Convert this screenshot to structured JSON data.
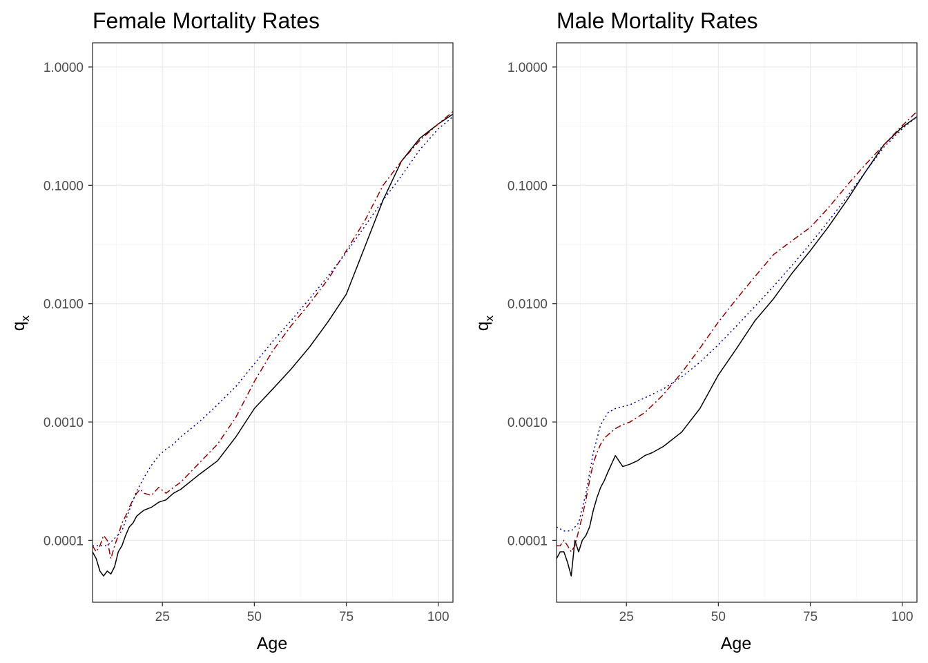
{
  "chart_data": [
    {
      "type": "line",
      "title": "Female Mortality Rates",
      "xlabel": "Age",
      "ylabel_main": "q",
      "ylabel_sub": "x",
      "xlim": [
        6,
        104
      ],
      "ylim": [
        3e-05,
        1.6
      ],
      "y_scale": "log10",
      "grid": true,
      "x_ticks": [
        25,
        50,
        75,
        100
      ],
      "x_tick_labels": [
        "25",
        "50",
        "75",
        "100"
      ],
      "y_ticks": [
        0.0001,
        0.001,
        0.01,
        0.1,
        1
      ],
      "y_tick_labels": [
        "0.0001",
        "0.0010",
        "0.0100",
        "0.1000",
        "1.0000"
      ],
      "series": [
        {
          "style": "solid",
          "color": "#000000",
          "x": [
            6,
            7,
            8,
            9,
            10,
            11,
            12,
            13,
            14,
            15,
            16,
            17,
            18,
            19,
            20,
            22,
            24,
            26,
            28,
            30,
            35,
            40,
            45,
            50,
            55,
            60,
            65,
            70,
            75,
            80,
            85,
            90,
            95,
            100,
            104
          ],
          "y": [
            8e-05,
            7e-05,
            5.5e-05,
            5e-05,
            5.5e-05,
            5.2e-05,
            6e-05,
            8e-05,
            9e-05,
            0.00011,
            0.00013,
            0.00014,
            0.00016,
            0.00017,
            0.00018,
            0.00019,
            0.00021,
            0.00022,
            0.00025,
            0.00027,
            0.00036,
            0.00047,
            0.00075,
            0.0013,
            0.0019,
            0.0028,
            0.0043,
            0.007,
            0.012,
            0.03,
            0.075,
            0.16,
            0.25,
            0.33,
            0.4
          ]
        },
        {
          "style": "dashdot",
          "color": "#8b0000",
          "x": [
            6,
            7,
            8,
            9,
            10,
            11,
            12,
            13,
            14,
            15,
            16,
            17,
            18,
            19,
            20,
            22,
            24,
            26,
            28,
            30,
            35,
            40,
            45,
            50,
            55,
            60,
            65,
            70,
            75,
            80,
            85,
            90,
            95,
            100,
            104
          ],
          "y": [
            9e-05,
            8e-05,
            9e-05,
            0.00011,
            0.0001,
            7e-05,
            9e-05,
            0.00011,
            0.00014,
            0.00016,
            0.00019,
            0.00022,
            0.00025,
            0.00027,
            0.00025,
            0.00024,
            0.00028,
            0.00025,
            0.00028,
            0.00031,
            0.00045,
            0.00065,
            0.0011,
            0.0022,
            0.004,
            0.0065,
            0.01,
            0.016,
            0.028,
            0.05,
            0.1,
            0.16,
            0.24,
            0.33,
            0.42
          ]
        },
        {
          "style": "dotted",
          "color": "#00008b",
          "x": [
            6,
            10,
            14,
            16,
            18,
            20,
            22,
            24,
            26,
            28,
            30,
            35,
            40,
            45,
            50,
            55,
            60,
            65,
            70,
            75,
            80,
            85,
            90,
            95,
            100,
            104
          ],
          "y": [
            9e-05,
            9e-05,
            0.00012,
            0.00018,
            0.00026,
            0.00034,
            0.00043,
            0.00052,
            0.00059,
            0.00065,
            0.00075,
            0.001,
            0.0014,
            0.002,
            0.0031,
            0.0048,
            0.0072,
            0.011,
            0.017,
            0.027,
            0.045,
            0.075,
            0.12,
            0.2,
            0.3,
            0.38
          ]
        }
      ]
    },
    {
      "type": "line",
      "title": "Male Mortality Rates",
      "xlabel": "Age",
      "ylabel_main": "q",
      "ylabel_sub": "x",
      "xlim": [
        6,
        104
      ],
      "ylim": [
        3e-05,
        1.6
      ],
      "y_scale": "log10",
      "grid": true,
      "x_ticks": [
        25,
        50,
        75,
        100
      ],
      "x_tick_labels": [
        "25",
        "50",
        "75",
        "100"
      ],
      "y_ticks": [
        0.0001,
        0.001,
        0.01,
        0.1,
        1
      ],
      "y_tick_labels": [
        "0.0001",
        "0.0010",
        "0.0100",
        "0.1000",
        "1.0000"
      ],
      "series": [
        {
          "style": "solid",
          "color": "#000000",
          "x": [
            6,
            7,
            8,
            9,
            10,
            11,
            12,
            13,
            14,
            15,
            16,
            17,
            18,
            19,
            20,
            22,
            24,
            26,
            28,
            30,
            32,
            35,
            40,
            45,
            50,
            55,
            60,
            65,
            70,
            75,
            80,
            85,
            90,
            95,
            100,
            104
          ],
          "y": [
            7e-05,
            8e-05,
            8e-05,
            6.5e-05,
            5e-05,
            0.0001,
            8e-05,
            0.0001,
            0.00011,
            0.00013,
            0.00018,
            0.00023,
            0.00028,
            0.00032,
            0.00038,
            0.00052,
            0.00042,
            0.00044,
            0.00047,
            0.00052,
            0.00055,
            0.00062,
            0.00082,
            0.0013,
            0.0025,
            0.0042,
            0.0072,
            0.011,
            0.018,
            0.028,
            0.045,
            0.075,
            0.13,
            0.22,
            0.31,
            0.38
          ]
        },
        {
          "style": "dashdot",
          "color": "#8b0000",
          "x": [
            6,
            7,
            8,
            9,
            10,
            11,
            12,
            13,
            14,
            15,
            16,
            17,
            18,
            19,
            20,
            22,
            24,
            26,
            28,
            30,
            35,
            40,
            45,
            50,
            55,
            60,
            65,
            70,
            75,
            80,
            85,
            90,
            95,
            100,
            104
          ],
          "y": [
            9e-05,
            9e-05,
            0.0001,
            9e-05,
            8e-05,
            9e-05,
            0.00012,
            0.00016,
            0.00022,
            0.00032,
            0.00045,
            0.00055,
            0.00065,
            0.00073,
            0.00078,
            0.00088,
            0.00095,
            0.001,
            0.0011,
            0.0012,
            0.0017,
            0.0026,
            0.0042,
            0.007,
            0.011,
            0.017,
            0.026,
            0.034,
            0.044,
            0.065,
            0.1,
            0.15,
            0.22,
            0.32,
            0.42
          ]
        },
        {
          "style": "dotted",
          "color": "#00008b",
          "x": [
            6,
            8,
            10,
            12,
            14,
            16,
            18,
            20,
            22,
            24,
            26,
            28,
            30,
            35,
            40,
            45,
            50,
            55,
            60,
            65,
            70,
            75,
            80,
            85,
            90,
            95,
            100,
            104
          ],
          "y": [
            0.00013,
            0.00012,
            0.00012,
            0.00014,
            0.00025,
            0.00055,
            0.00095,
            0.0012,
            0.0013,
            0.00135,
            0.0014,
            0.0015,
            0.0016,
            0.0019,
            0.0024,
            0.0032,
            0.0045,
            0.0065,
            0.0095,
            0.014,
            0.021,
            0.032,
            0.05,
            0.08,
            0.13,
            0.21,
            0.3,
            0.38
          ]
        }
      ]
    }
  ]
}
